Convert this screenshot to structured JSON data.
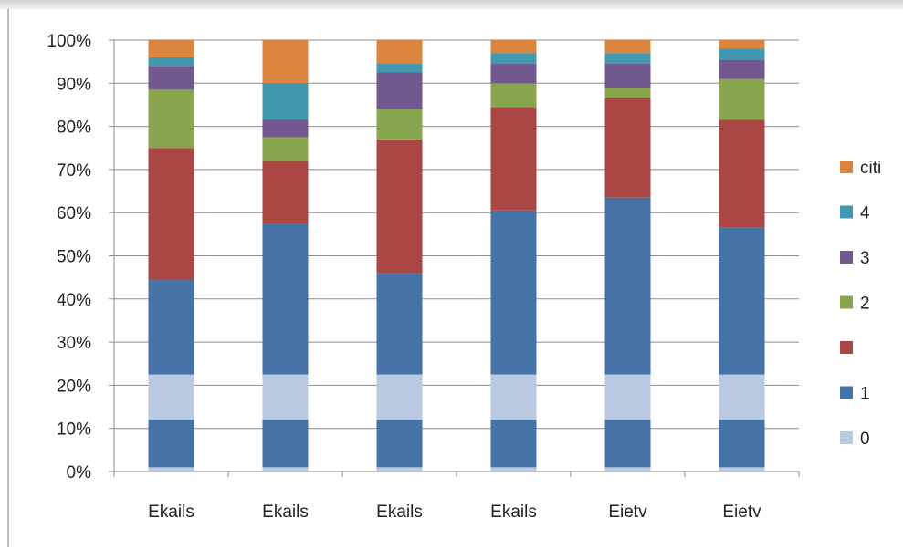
{
  "chart_data": {
    "type": "bar",
    "stacked": true,
    "percent_stacked": true,
    "title": "",
    "xlabel": "",
    "ylabel": "",
    "ylim": [
      0,
      100
    ],
    "yticks": [
      "0%",
      "10%",
      "20%",
      "30%",
      "40%",
      "50%",
      "60%",
      "70%",
      "80%",
      "90%",
      "100%"
    ],
    "categories": [
      "Ekails",
      "Ekails",
      "Ekails",
      "Ekails",
      "Eietv",
      "Eietv"
    ],
    "grid": true,
    "legend_position": "right",
    "series": [
      {
        "name": "0",
        "color": "#b9c9e1",
        "values": [
          22.5,
          22.5,
          22.5,
          22.5,
          22.5,
          22.5
        ]
      },
      {
        "name": "1",
        "color": "#4573a7",
        "values": [
          22.0,
          35.0,
          23.5,
          38.0,
          41.0,
          34.0
        ]
      },
      {
        "name": "",
        "color": "#aa4643",
        "values": [
          30.5,
          14.5,
          31.0,
          24.0,
          23.0,
          25.0
        ]
      },
      {
        "name": "2",
        "color": "#89a54e",
        "values": [
          13.5,
          5.5,
          7.0,
          5.5,
          2.5,
          9.5
        ]
      },
      {
        "name": "3",
        "color": "#71588f",
        "values": [
          5.5,
          4.0,
          8.5,
          4.5,
          5.5,
          4.5
        ]
      },
      {
        "name": "4",
        "color": "#4198af",
        "values": [
          2.0,
          8.5,
          2.0,
          2.5,
          2.5,
          2.5
        ]
      },
      {
        "name": "citi",
        "color": "#db843d",
        "values": [
          4.0,
          10.0,
          5.5,
          3.0,
          3.0,
          2.0
        ]
      }
    ],
    "bottom_band": {
      "color": "#4573a7",
      "from_value": 1,
      "to_value": 12,
      "note": ""
    }
  }
}
